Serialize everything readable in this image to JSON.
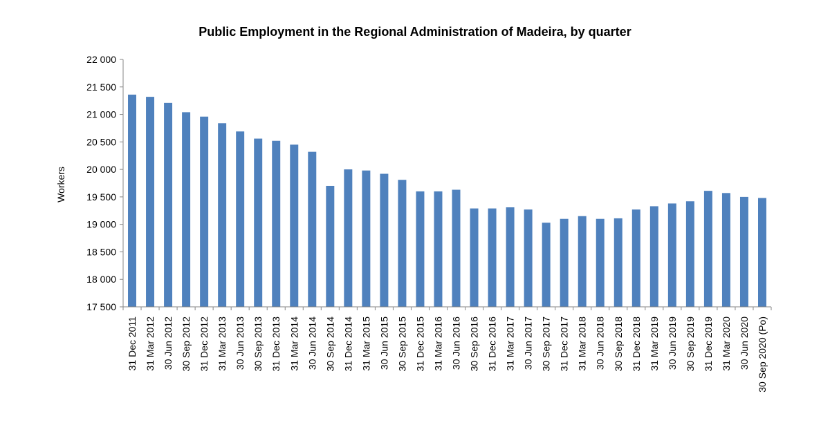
{
  "chart_data": {
    "type": "bar",
    "title": "Public Employment in the Regional Administration of Madeira, by quarter",
    "ylabel": "Workers",
    "xlabel": "",
    "ylim": [
      17500,
      22000
    ],
    "yticks": [
      17500,
      18000,
      18500,
      19000,
      19500,
      20000,
      20500,
      21000,
      21500,
      22000
    ],
    "ytick_labels": [
      "17 500",
      "18 000",
      "18 500",
      "19 000",
      "19 500",
      "20 000",
      "20 500",
      "21 000",
      "21 500",
      "22 000"
    ],
    "grid": false,
    "legend": "none",
    "bar_color": "#4F81BD",
    "categories": [
      "31 Dec 2011",
      "31 Mar 2012",
      "30 Jun 2012",
      "30 Sep 2012",
      "31 Dec 2012",
      "31 Mar 2013",
      "30 Jun 2013",
      "30 Sep 2013",
      "31 Dec 2013",
      "31 Mar 2014",
      "30 Jun 2014",
      "30 Sep 2014",
      "31 Dec 2014",
      "31 Mar 2015",
      "30 Jun 2015",
      "30 Sep 2015",
      "31 Dec 2015",
      "31 Mar 2016",
      "30 Jun 2016",
      "30 Sep 2016",
      "31 Dec 2016",
      "31 Mar 2017",
      "30 Jun 2017",
      "30 Sep 2017",
      "31 Dec 2017",
      "31 Mar 2018",
      "30 Jun 2018",
      "30 Sep 2018",
      "31 Dec 2018",
      "31 Mar 2019",
      "30 Jun 2019",
      "30 Sep 2019",
      "31 Dec 2019",
      "31 Mar 2020",
      "30 Jun 2020",
      "30 Sep 2020 (Po)"
    ],
    "values": [
      21360,
      21320,
      21210,
      21040,
      20960,
      20840,
      20690,
      20560,
      20520,
      20450,
      20320,
      19700,
      20000,
      19980,
      19920,
      19810,
      19600,
      19600,
      19630,
      19290,
      19290,
      19310,
      19270,
      19030,
      19100,
      19150,
      19100,
      19110,
      19270,
      19330,
      19380,
      19420,
      19610,
      19570,
      19500,
      19480
    ]
  }
}
